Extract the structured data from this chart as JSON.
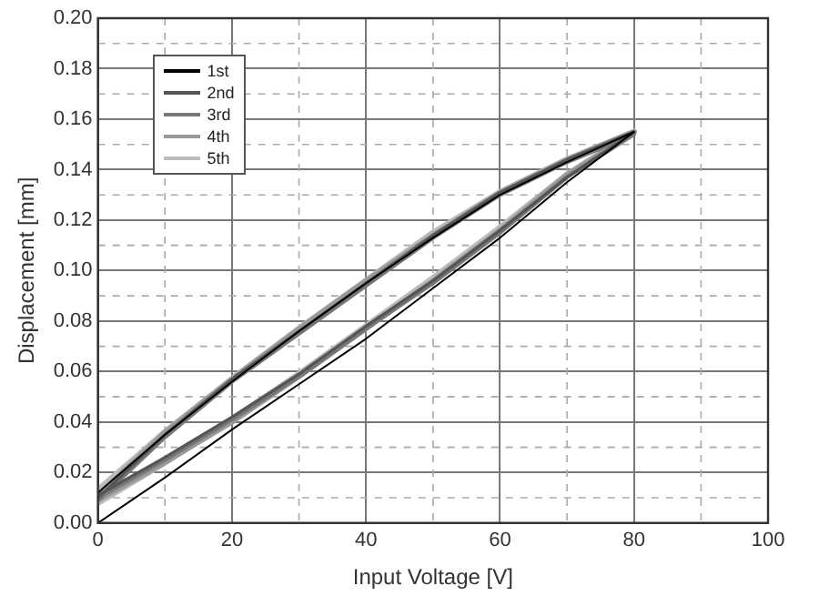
{
  "chart_data": {
    "type": "line",
    "xlabel": "Input Voltage [V]",
    "ylabel": "Displacement [mm]",
    "xlim": [
      0,
      100
    ],
    "xticks": [
      0,
      20,
      40,
      60,
      80,
      100
    ],
    "ylim": [
      0,
      0.2
    ],
    "yticks": [
      {
        "value": 0,
        "label": "0.00"
      },
      {
        "value": 0.02,
        "label": "0.02"
      },
      {
        "value": 0.04,
        "label": "0.04"
      },
      {
        "value": 0.06,
        "label": "0.06"
      },
      {
        "value": 0.08,
        "label": "0.08"
      },
      {
        "value": 0.1,
        "label": "0.10"
      },
      {
        "value": 0.12,
        "label": "0.12"
      },
      {
        "value": 0.14,
        "label": "0.14"
      },
      {
        "value": 0.16,
        "label": "0.16"
      },
      {
        "value": 0.18,
        "label": "0.18"
      },
      {
        "value": 0.2,
        "label": "0.20"
      }
    ],
    "grid": true,
    "legend": "top left",
    "marker": "none",
    "line_style": "solid",
    "series": [
      {
        "name": "1st",
        "color": "#000000",
        "x": [
          0,
          10,
          20,
          30,
          40,
          50,
          60,
          70,
          80,
          70,
          60,
          50,
          40,
          30,
          20,
          10,
          0
        ],
        "values": [
          0,
          0.018,
          0.037,
          0.055,
          0.073,
          0.093,
          0.113,
          0.135,
          0.155,
          0.143,
          0.13,
          0.113,
          0.095,
          0.076,
          0.056,
          0.035,
          0.012
        ]
      },
      {
        "name": "2nd",
        "color": "#555555",
        "x": [
          0,
          10,
          20,
          30,
          40,
          50,
          60,
          70,
          80,
          70,
          60,
          50,
          40,
          30,
          20,
          10,
          0
        ],
        "values": [
          0.011,
          0.026,
          0.042,
          0.059,
          0.078,
          0.096,
          0.116,
          0.137,
          0.155,
          0.144,
          0.131,
          0.114,
          0.095,
          0.076,
          0.057,
          0.035,
          0.01
        ]
      },
      {
        "name": "3rd",
        "color": "#777777",
        "x": [
          0,
          10,
          20,
          30,
          40,
          50,
          60,
          70,
          80,
          70,
          60,
          50,
          40,
          30,
          20,
          10,
          0
        ],
        "values": [
          0.01,
          0.025,
          0.041,
          0.058,
          0.077,
          0.095,
          0.115,
          0.137,
          0.154,
          0.143,
          0.13,
          0.113,
          0.094,
          0.075,
          0.056,
          0.034,
          0.009
        ]
      },
      {
        "name": "4th",
        "color": "#999999",
        "x": [
          0,
          10,
          20,
          30,
          40,
          50,
          60,
          70,
          80,
          70,
          60,
          50,
          40,
          30,
          20,
          10,
          0
        ],
        "values": [
          0.009,
          0.024,
          0.04,
          0.058,
          0.077,
          0.096,
          0.116,
          0.138,
          0.155,
          0.144,
          0.131,
          0.114,
          0.096,
          0.077,
          0.057,
          0.036,
          0.011
        ]
      },
      {
        "name": "5th",
        "color": "#bbbbbb",
        "x": [
          0,
          10,
          20,
          30,
          40,
          50,
          60,
          70,
          80,
          70,
          60,
          50,
          40,
          30,
          20,
          10,
          0
        ],
        "values": [
          0.008,
          0.024,
          0.041,
          0.059,
          0.078,
          0.097,
          0.117,
          0.138,
          0.155,
          0.144,
          0.131,
          0.115,
          0.096,
          0.077,
          0.057,
          0.036,
          0.013
        ]
      }
    ]
  }
}
